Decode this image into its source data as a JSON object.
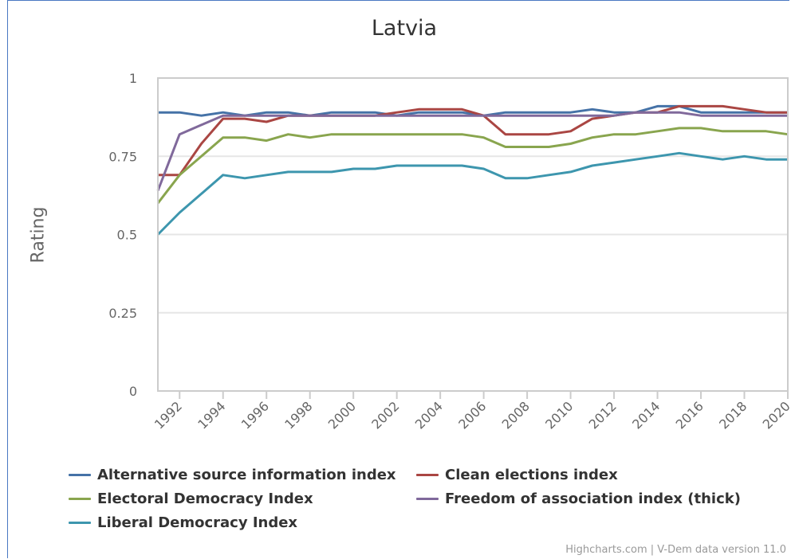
{
  "chart_data": {
    "type": "line",
    "title": "Latvia",
    "ylabel": "Rating",
    "ylim": [
      0,
      1
    ],
    "yticks": [
      "0",
      "0.25",
      "0.5",
      "0.75",
      "1"
    ],
    "x_ticks": [
      "1992",
      "1994",
      "1996",
      "1998",
      "2000",
      "2002",
      "2004",
      "2006",
      "2008",
      "2010",
      "2012",
      "2014",
      "2016",
      "2018",
      "2020"
    ],
    "x": [
      1991,
      1992,
      1993,
      1994,
      1995,
      1996,
      1997,
      1998,
      1999,
      2000,
      2001,
      2002,
      2003,
      2004,
      2005,
      2006,
      2007,
      2008,
      2009,
      2010,
      2011,
      2012,
      2013,
      2014,
      2015,
      2016,
      2017,
      2018,
      2019,
      2020
    ],
    "grid": true,
    "legend_position": "bottom",
    "series": [
      {
        "name": "Alternative source information index",
        "color": "#4572a7",
        "values": [
          0.89,
          0.89,
          0.88,
          0.89,
          0.88,
          0.89,
          0.89,
          0.88,
          0.89,
          0.89,
          0.89,
          0.88,
          0.89,
          0.89,
          0.89,
          0.88,
          0.89,
          0.89,
          0.89,
          0.89,
          0.9,
          0.89,
          0.89,
          0.91,
          0.91,
          0.89,
          0.89,
          0.89,
          0.89,
          0.89
        ]
      },
      {
        "name": "Clean elections index",
        "color": "#aa4643",
        "values": [
          0.69,
          0.69,
          0.79,
          0.87,
          0.87,
          0.86,
          0.88,
          0.88,
          0.88,
          0.88,
          0.88,
          0.89,
          0.9,
          0.9,
          0.9,
          0.88,
          0.82,
          0.82,
          0.82,
          0.83,
          0.87,
          0.88,
          0.89,
          0.89,
          0.91,
          0.91,
          0.91,
          0.9,
          0.89,
          0.89
        ]
      },
      {
        "name": "Electoral Democracy Index",
        "color": "#89a54e",
        "values": [
          0.6,
          0.69,
          0.75,
          0.81,
          0.81,
          0.8,
          0.82,
          0.81,
          0.82,
          0.82,
          0.82,
          0.82,
          0.82,
          0.82,
          0.82,
          0.81,
          0.78,
          0.78,
          0.78,
          0.79,
          0.81,
          0.82,
          0.82,
          0.83,
          0.84,
          0.84,
          0.83,
          0.83,
          0.83,
          0.82
        ]
      },
      {
        "name": "Freedom of association index (thick)",
        "color": "#80699b",
        "values": [
          0.64,
          0.82,
          0.85,
          0.88,
          0.88,
          0.88,
          0.88,
          0.88,
          0.88,
          0.88,
          0.88,
          0.88,
          0.88,
          0.88,
          0.88,
          0.88,
          0.88,
          0.88,
          0.88,
          0.88,
          0.88,
          0.88,
          0.89,
          0.89,
          0.89,
          0.88,
          0.88,
          0.88,
          0.88,
          0.88
        ]
      },
      {
        "name": "Liberal Democracy Index",
        "color": "#3d96ae",
        "values": [
          0.5,
          0.57,
          0.63,
          0.69,
          0.68,
          0.69,
          0.7,
          0.7,
          0.7,
          0.71,
          0.71,
          0.72,
          0.72,
          0.72,
          0.72,
          0.71,
          0.68,
          0.68,
          0.69,
          0.7,
          0.72,
          0.73,
          0.74,
          0.75,
          0.76,
          0.75,
          0.74,
          0.75,
          0.74,
          0.74
        ]
      }
    ]
  },
  "credits": "Highcharts.com | V-Dem data version 11.0"
}
